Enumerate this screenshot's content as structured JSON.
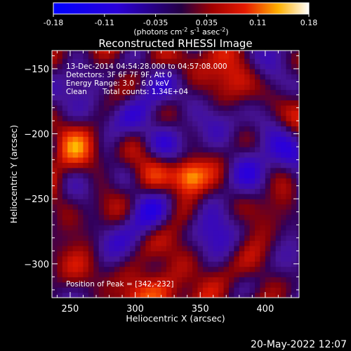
{
  "chart_data": {
    "type": "heatmap",
    "title": "Reconstructed RHESSI Image",
    "xlabel": "Heliocentric X (arcsec)",
    "ylabel": "Heliocentric Y (arcsec)",
    "xlim": [
      236,
      426
    ],
    "ylim": [
      -326,
      -136
    ],
    "x_ticks": [
      250,
      300,
      350,
      400
    ],
    "y_ticks": [
      -150,
      -200,
      -250,
      -300
    ],
    "colorbar": {
      "range": [
        -0.18,
        0.18
      ],
      "ticks": [
        "-0.18",
        "-0.11",
        "-0.035",
        "0.035",
        "0.11",
        "0.18"
      ],
      "unit_parts": {
        "a": "(photons cm",
        "b": "-2",
        "c": " s",
        "d": "-1",
        "e": " asec",
        "f": "-2",
        "g": ")"
      }
    },
    "annotations": {
      "time_range": "13-Dec-2014 04:54:28.000 to 04:57:08.000",
      "detectors": "Detectors: 3F 6F 7F 9F, Att 0",
      "energy_range": "Energy Range: 3.0 - 6.0 keV",
      "method": "Clean",
      "total_counts": "Total counts: 1.34E+04",
      "peak": "Position of Peak = [342,-232]"
    },
    "peak": {
      "x": 342,
      "y": -232,
      "value": 0.18
    },
    "secondary_sources": [
      {
        "x": 330,
        "y": -295,
        "value": 0.07
      },
      {
        "x": 250,
        "y": -212,
        "value": 0.06
      },
      {
        "x": 255,
        "y": -270,
        "value": 0.05
      },
      {
        "x": 420,
        "y": -185,
        "value": 0.06
      },
      {
        "x": 410,
        "y": -260,
        "value": 0.05
      },
      {
        "x": 275,
        "y": -135,
        "value": 0.05
      },
      {
        "x": 375,
        "y": -140,
        "value": 0.05
      },
      {
        "x": 350,
        "y": -325,
        "value": 0.05
      },
      {
        "x": 300,
        "y": -325,
        "value": 0.04
      },
      {
        "x": 395,
        "y": -310,
        "value": 0.04
      }
    ],
    "negative_regions": [
      {
        "x": 310,
        "y": -195,
        "value": -0.04
      },
      {
        "x": 300,
        "y": -270,
        "value": -0.05
      },
      {
        "x": 375,
        "y": -265,
        "value": -0.05
      },
      {
        "x": 280,
        "y": -150,
        "value": -0.04
      },
      {
        "x": 385,
        "y": -205,
        "value": -0.04
      }
    ]
  },
  "timestamp": "20-May-2022 12:07"
}
